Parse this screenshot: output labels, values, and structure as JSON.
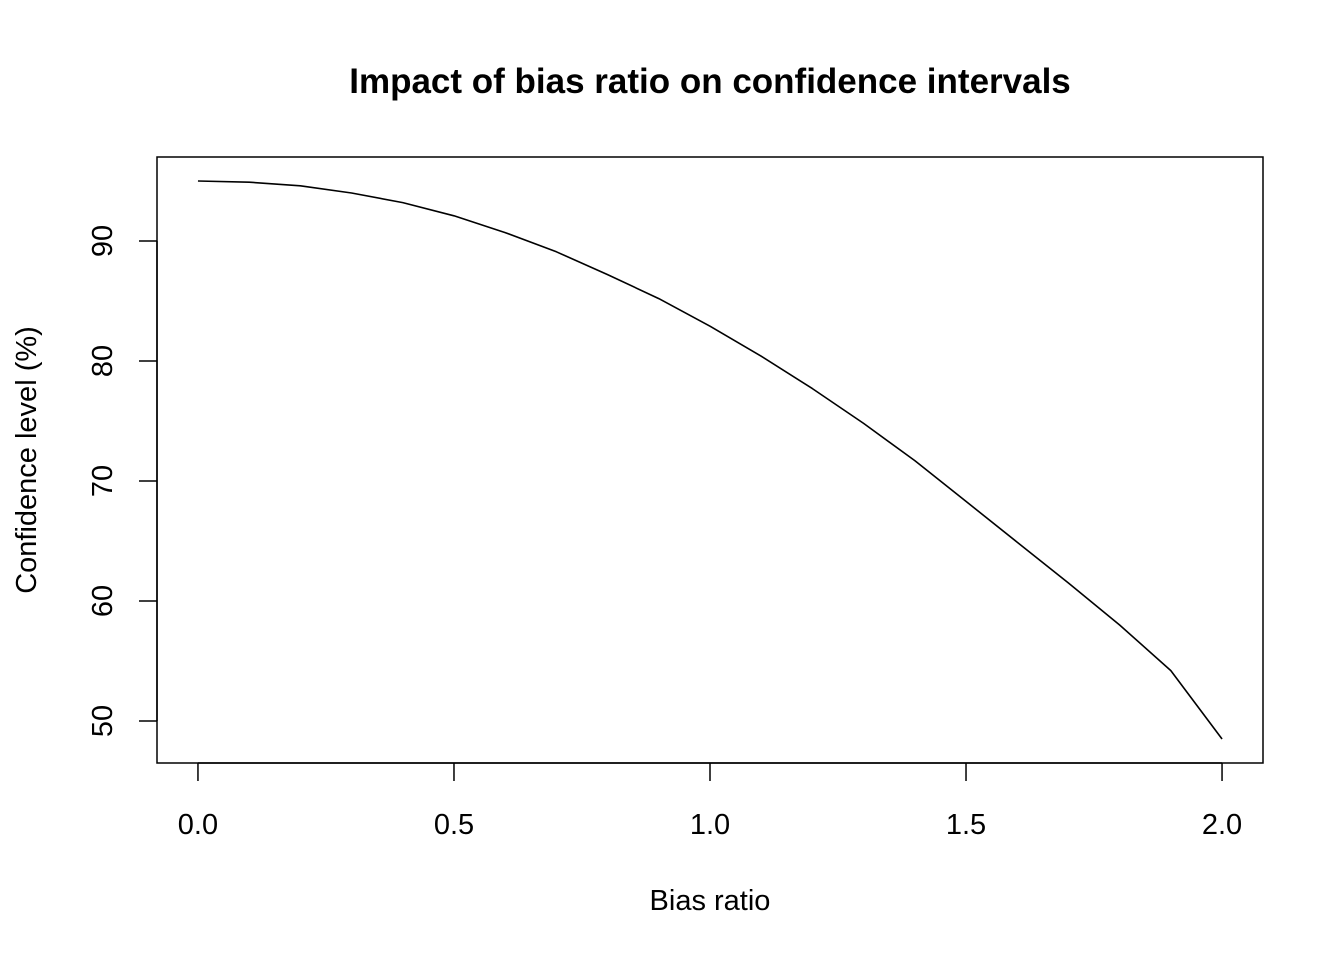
{
  "chart_data": {
    "type": "line",
    "title": "Impact of bias ratio on confidence intervals",
    "xlabel": "Bias ratio",
    "ylabel": "Confidence level (%)",
    "xlim": [
      -0.08,
      2.08
    ],
    "ylim": [
      46.5,
      97.0
    ],
    "xticks": [
      0.0,
      0.5,
      1.0,
      1.5,
      2.0
    ],
    "xtick_labels": [
      "0.0",
      "0.5",
      "1.0",
      "1.5",
      "2.0"
    ],
    "yticks": [
      50,
      60,
      70,
      80,
      90
    ],
    "ytick_labels": [
      "50",
      "60",
      "70",
      "80",
      "90"
    ],
    "grid": false,
    "line_color": "#000000",
    "series": [
      {
        "name": "Confidence level",
        "x": [
          0.0,
          0.1,
          0.2,
          0.3,
          0.4,
          0.5,
          0.6,
          0.7,
          0.8,
          0.9,
          1.0,
          1.1,
          1.2,
          1.3,
          1.4,
          1.5,
          1.6,
          1.7,
          1.8,
          1.9,
          2.0
        ],
        "values": [
          95.0,
          94.9,
          94.6,
          94.0,
          93.2,
          92.1,
          90.7,
          89.1,
          87.2,
          85.2,
          82.9,
          80.4,
          77.7,
          74.8,
          71.7,
          68.3,
          64.9,
          61.5,
          58.0,
          54.2,
          48.5
        ]
      }
    ]
  }
}
